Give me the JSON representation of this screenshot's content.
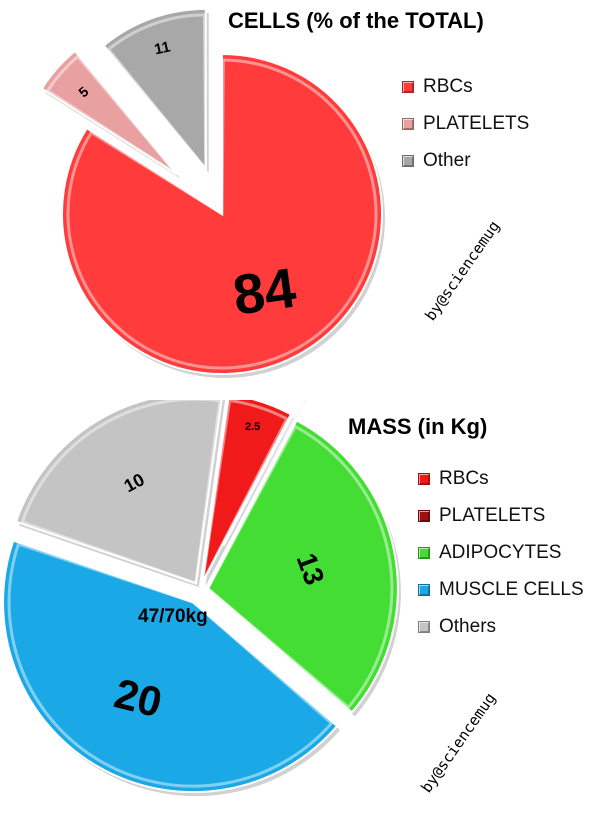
{
  "chart_data": [
    {
      "type": "pie",
      "title": "CELLS (% of the TOTAL)",
      "categories": [
        "RBCs",
        "PLATELETS",
        "Other"
      ],
      "values": [
        84,
        5,
        11
      ],
      "colors": [
        "#ff3b3b",
        "#e8a0a0",
        "#a8a8a8"
      ],
      "legend_position": "right",
      "exploded": true
    },
    {
      "type": "pie",
      "title": "MASS (in Kg)",
      "categories": [
        "RBCs",
        "PLATELETS",
        "ADIPOCYTES",
        "MUSCLE CELLS",
        "Others"
      ],
      "values": [
        2.5,
        0.01,
        13,
        20,
        10
      ],
      "value_labels": [
        "2.5",
        "",
        "13",
        "20",
        "10"
      ],
      "colors": [
        "#f01a1a",
        "#a01010",
        "#44dd33",
        "#1aa9e6",
        "#c4c4c4"
      ],
      "legend_position": "right",
      "exploded": true,
      "annotation": "47/70kg"
    }
  ],
  "credit": "by@sciencemug"
}
